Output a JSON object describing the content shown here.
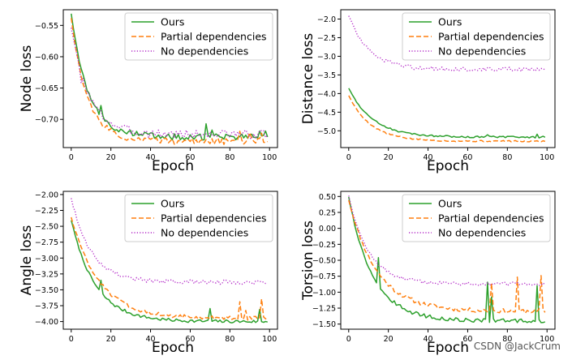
{
  "figure": {
    "watermark": "CSDN @JackCrum"
  },
  "colors": {
    "ours": "#2ca02c",
    "partial": "#ff7f0e",
    "none": "#b42cc8",
    "axis": "#000000"
  },
  "chart_data": [
    {
      "type": "line",
      "xlabel": "Epoch",
      "ylabel": "Node loss",
      "xlim": [
        -4,
        104
      ],
      "ylim": [
        -0.745,
        -0.525
      ],
      "xticks": [
        0,
        20,
        40,
        60,
        80,
        100
      ],
      "yticks": [
        -0.55,
        -0.6,
        -0.65,
        -0.7
      ],
      "ytick_labels": [
        "−0.55",
        "−0.60",
        "−0.65",
        "−0.70"
      ],
      "legend_position": "top-right",
      "series": [
        {
          "name": "Ours",
          "key": "ours",
          "style": "solid",
          "curve": {
            "start": -0.53,
            "end": -0.728,
            "k": 8.5,
            "noise": 0.005,
            "seed": 1,
            "spikes": [
              [
                15,
                0.012
              ],
              [
                68,
                0.016
              ],
              [
                71,
                0.012
              ],
              [
                95,
                0.014
              ],
              [
                98,
                0.01
              ]
            ]
          }
        },
        {
          "name": "Partial dependencies",
          "key": "partial",
          "style": "dashed",
          "curve": {
            "start": -0.537,
            "end": -0.735,
            "k": 8,
            "noise": 0.005,
            "seed": 2,
            "spikes": [
              [
                85,
                0.016
              ],
              [
                90,
                0.014
              ],
              [
                96,
                0.01
              ]
            ]
          }
        },
        {
          "name": "No dependencies",
          "key": "none",
          "style": "dotted",
          "curve": {
            "start": -0.552,
            "end": -0.724,
            "k": 9,
            "noise": 0.007,
            "seed": 3,
            "spikes": [
              [
                5,
                -0.02
              ],
              [
                76,
                0.008
              ],
              [
                84,
                0.008
              ]
            ]
          }
        }
      ]
    },
    {
      "type": "line",
      "xlabel": "Epoch",
      "ylabel": "Distance loss",
      "xlim": [
        -4,
        104
      ],
      "ylim": [
        -5.45,
        -1.75
      ],
      "xticks": [
        0,
        20,
        40,
        60,
        80,
        100
      ],
      "yticks": [
        -2.0,
        -2.5,
        -3.0,
        -3.5,
        -4.0,
        -4.5,
        -5.0
      ],
      "ytick_labels": [
        "−2.0",
        "−2.5",
        "−3.0",
        "−3.5",
        "−4.0",
        "−4.5",
        "−5.0"
      ],
      "legend_position": "top-right",
      "series": [
        {
          "name": "Ours",
          "key": "ours",
          "style": "solid",
          "curve": {
            "start": -3.85,
            "end": -5.17,
            "k": 12,
            "noise": 0.025,
            "seed": 4,
            "spikes": [
              [
                70,
                0.06
              ],
              [
                95,
                0.06
              ]
            ]
          }
        },
        {
          "name": "Partial dependencies",
          "key": "partial",
          "style": "dashed",
          "curve": {
            "start": -4.05,
            "end": -5.28,
            "k": 11,
            "noise": 0.02,
            "seed": 5,
            "spikes": []
          }
        },
        {
          "name": "No dependencies",
          "key": "none",
          "style": "dotted",
          "curve": {
            "start": -1.9,
            "end": -3.35,
            "k": 10,
            "noise": 0.06,
            "seed": 6,
            "spikes": []
          }
        }
      ]
    },
    {
      "type": "line",
      "xlabel": "Epoch",
      "ylabel": "Angle loss",
      "xlim": [
        -4,
        104
      ],
      "ylim": [
        -4.12,
        -1.95
      ],
      "xticks": [
        0,
        20,
        40,
        60,
        80,
        100
      ],
      "yticks": [
        -2.0,
        -2.25,
        -2.5,
        -2.75,
        -3.0,
        -3.25,
        -3.5,
        -3.75,
        -4.0
      ],
      "ytick_labels": [
        "−2.00",
        "−2.25",
        "−2.50",
        "−2.75",
        "−3.00",
        "−3.25",
        "−3.50",
        "−3.75",
        "−4.00"
      ],
      "legend_position": "top-right",
      "series": [
        {
          "name": "Ours",
          "key": "ours",
          "style": "solid",
          "curve": {
            "start": -2.4,
            "end": -4.0,
            "k": 12,
            "noise": 0.025,
            "seed": 7,
            "spikes": [
              [
                15,
                0.18
              ],
              [
                70,
                0.2
              ],
              [
                95,
                0.18
              ]
            ]
          }
        },
        {
          "name": "Partial dependencies",
          "key": "partial",
          "style": "dashed",
          "curve": {
            "start": -2.35,
            "end": -3.95,
            "k": 14,
            "noise": 0.03,
            "seed": 8,
            "spikes": [
              [
                85,
                0.28
              ],
              [
                88,
                0.15
              ],
              [
                96,
                0.3
              ]
            ]
          }
        },
        {
          "name": "No dependencies",
          "key": "none",
          "style": "dotted",
          "curve": {
            "start": -2.05,
            "end": -3.38,
            "k": 10,
            "noise": 0.035,
            "seed": 9,
            "spikes": []
          }
        }
      ]
    },
    {
      "type": "line",
      "xlabel": "Epoch",
      "ylabel": "Torsion loss",
      "xlim": [
        -4,
        104
      ],
      "ylim": [
        -1.58,
        0.58
      ],
      "xticks": [
        0,
        20,
        40,
        60,
        80,
        100
      ],
      "yticks": [
        0.5,
        0.25,
        0.0,
        -0.25,
        -0.5,
        -0.75,
        -1.0,
        -1.25,
        -1.5
      ],
      "ytick_labels": [
        "0.50",
        "0.25",
        "0.00",
        "−0.25",
        "−0.50",
        "−0.75",
        "−1.00",
        "−1.25",
        "−1.50"
      ],
      "legend_position": "top-right",
      "series": [
        {
          "name": "Ours",
          "key": "ours",
          "style": "solid",
          "curve": {
            "start": 0.5,
            "end": -1.45,
            "k": 12,
            "noise": 0.03,
            "seed": 10,
            "spikes": [
              [
                15,
                0.45
              ],
              [
                70,
                0.6
              ],
              [
                72,
                0.35
              ],
              [
                95,
                0.55
              ]
            ]
          }
        },
        {
          "name": "Partial dependencies",
          "key": "partial",
          "style": "dashed",
          "curve": {
            "start": 0.45,
            "end": -1.3,
            "k": 14,
            "noise": 0.035,
            "seed": 11,
            "spikes": [
              [
                72,
                0.45
              ],
              [
                85,
                0.5
              ],
              [
                97,
                0.55
              ]
            ]
          }
        },
        {
          "name": "No dependencies",
          "key": "none",
          "style": "dotted",
          "curve": {
            "start": 0.52,
            "end": -0.87,
            "k": 10,
            "noise": 0.03,
            "seed": 12,
            "spikes": []
          }
        }
      ]
    }
  ]
}
